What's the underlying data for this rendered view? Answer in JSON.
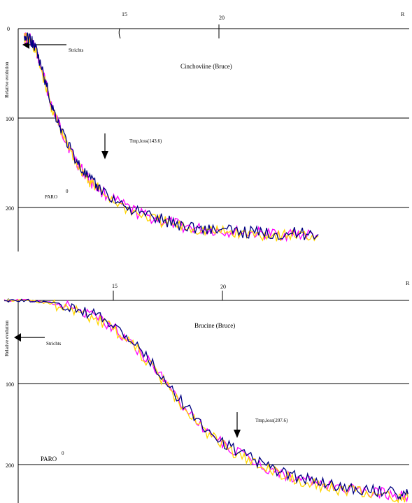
{
  "chart_data": [
    {
      "type": "line",
      "title": "Cinchoviine (Bruce)",
      "ylabel": "Relative evolution",
      "x_ticks": [
        "15",
        "20",
        "R"
      ],
      "y_ticks": [
        "0",
        "100",
        "200"
      ],
      "annotations": {
        "start_label": "Strichts",
        "mid_label": "Tmp,loss(143.6)",
        "param_label": "PARO",
        "param_superscript": "0"
      },
      "ylim": [
        0,
        250
      ],
      "series": [
        {
          "color": "#ff00ff",
          "values": [
            [
              10.2,
              10
            ],
            [
              10.5,
              12
            ],
            [
              10.8,
              25
            ],
            [
              11.2,
              55
            ],
            [
              11.6,
              88
            ],
            [
              12.0,
              110
            ],
            [
              12.5,
              135
            ],
            [
              13.0,
              155
            ],
            [
              13.5,
              170
            ],
            [
              14.0,
              180
            ],
            [
              15.0,
              196
            ],
            [
              16.0,
              207
            ],
            [
              17.0,
              214
            ],
            [
              18.0,
              220
            ],
            [
              19.0,
              224
            ],
            [
              20.0,
              226
            ],
            [
              21.0,
              228
            ],
            [
              22.0,
              229
            ],
            [
              23.0,
              230
            ],
            [
              24.0,
              230
            ],
            [
              25.0,
              231
            ]
          ]
        },
        {
          "color": "#ffd700",
          "values": [
            [
              10.2,
              10
            ],
            [
              10.5,
              13
            ],
            [
              10.8,
              27
            ],
            [
              11.2,
              57
            ],
            [
              11.6,
              90
            ],
            [
              12.0,
              112
            ],
            [
              12.5,
              137
            ],
            [
              13.0,
              156
            ],
            [
              13.5,
              171
            ],
            [
              14.0,
              181
            ],
            [
              15.0,
              197
            ],
            [
              16.0,
              208
            ],
            [
              17.0,
              215
            ],
            [
              18.0,
              221
            ],
            [
              19.0,
              225
            ],
            [
              20.0,
              227
            ],
            [
              21.0,
              229
            ],
            [
              22.0,
              230
            ],
            [
              23.0,
              231
            ],
            [
              24.0,
              231
            ],
            [
              25.0,
              232
            ]
          ]
        },
        {
          "color": "#000080",
          "values": [
            [
              10.2,
              10
            ],
            [
              10.5,
              11
            ],
            [
              10.8,
              24
            ],
            [
              11.2,
              54
            ],
            [
              11.6,
              87
            ],
            [
              12.0,
              109
            ],
            [
              12.5,
              134
            ],
            [
              13.0,
              154
            ],
            [
              13.5,
              169
            ],
            [
              14.0,
              179
            ],
            [
              15.0,
              195
            ],
            [
              16.0,
              206
            ],
            [
              17.0,
              213
            ],
            [
              18.0,
              219
            ],
            [
              19.0,
              223
            ],
            [
              20.0,
              225
            ],
            [
              21.0,
              227
            ],
            [
              22.0,
              228
            ],
            [
              23.0,
              229
            ],
            [
              24.0,
              229
            ],
            [
              25.0,
              230
            ]
          ]
        }
      ]
    },
    {
      "type": "line",
      "title": "Brucine (Bruce)",
      "ylabel": "Relative evolution",
      "x_ticks": [
        "15",
        "20",
        "R"
      ],
      "y_ticks": [
        "0",
        "100",
        "200"
      ],
      "annotations": {
        "start_label": "Strichts",
        "mid_label": "Tmp,loss(207.6)",
        "param_label": "PARO",
        "param_superscript": "0"
      },
      "ylim": [
        0,
        250
      ],
      "series": [
        {
          "color": "#ff00ff",
          "values": [
            [
              10.0,
              0
            ],
            [
              11.0,
              0
            ],
            [
              12.0,
              2
            ],
            [
              13.0,
              8
            ],
            [
              14.0,
              18
            ],
            [
              15.0,
              32
            ],
            [
              16.0,
              55
            ],
            [
              17.0,
              85
            ],
            [
              18.0,
              120
            ],
            [
              19.0,
              150
            ],
            [
              20.0,
              172
            ],
            [
              21.0,
              188
            ],
            [
              22.0,
              201
            ],
            [
              23.0,
              211
            ],
            [
              24.0,
              218
            ],
            [
              25.0,
              224
            ],
            [
              26.0,
              228
            ],
            [
              27.0,
              231
            ],
            [
              28.0,
              234
            ],
            [
              28.5,
              235
            ]
          ]
        },
        {
          "color": "#ffd700",
          "values": [
            [
              10.0,
              0
            ],
            [
              11.0,
              0
            ],
            [
              12.0,
              3
            ],
            [
              13.0,
              10
            ],
            [
              14.0,
              20
            ],
            [
              15.0,
              34
            ],
            [
              16.0,
              57
            ],
            [
              17.0,
              87
            ],
            [
              18.0,
              122
            ],
            [
              19.0,
              152
            ],
            [
              20.0,
              174
            ],
            [
              21.0,
              190
            ],
            [
              22.0,
              203
            ],
            [
              23.0,
              213
            ],
            [
              24.0,
              220
            ],
            [
              25.0,
              226
            ],
            [
              26.0,
              230
            ],
            [
              27.0,
              233
            ],
            [
              28.0,
              236
            ],
            [
              28.5,
              237
            ]
          ]
        },
        {
          "color": "#000080",
          "values": [
            [
              10.0,
              0
            ],
            [
              11.0,
              0
            ],
            [
              12.0,
              2
            ],
            [
              13.0,
              7
            ],
            [
              14.0,
              16
            ],
            [
              15.0,
              30
            ],
            [
              16.0,
              53
            ],
            [
              17.0,
              83
            ],
            [
              18.0,
              118
            ],
            [
              19.0,
              148
            ],
            [
              20.0,
              170
            ],
            [
              21.0,
              186
            ],
            [
              22.0,
              199
            ],
            [
              23.0,
              209
            ],
            [
              24.0,
              216
            ],
            [
              25.0,
              222
            ],
            [
              26.0,
              226
            ],
            [
              27.0,
              229
            ],
            [
              28.0,
              232
            ],
            [
              28.5,
              233
            ]
          ]
        }
      ]
    }
  ]
}
